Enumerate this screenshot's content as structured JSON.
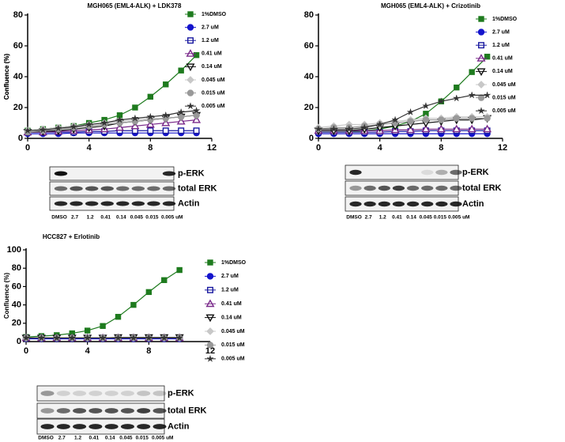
{
  "chart_data": [
    {
      "type": "line",
      "title": "MGH065 (EML4-ALK) + LDK378",
      "y_label": "Confluence (%)",
      "x": [
        0,
        1,
        2,
        3,
        4,
        5,
        6,
        7,
        8,
        9,
        10,
        11
      ],
      "xlim": [
        0,
        12
      ],
      "xticks": [
        0,
        4,
        8,
        12
      ],
      "ylim": [
        0,
        80
      ],
      "yticks": [
        0,
        20,
        40,
        60,
        80
      ],
      "series": [
        {
          "name": "1%DMSO",
          "color": "#1e7b1e",
          "marker": "square",
          "values": [
            5,
            6,
            7,
            8,
            10,
            12,
            15,
            20,
            27,
            35,
            44,
            54
          ]
        },
        {
          "name": "2.7 uM",
          "color": "#1414cc",
          "marker": "circle",
          "values": [
            3,
            3,
            3,
            3.5,
            3.5,
            3.5,
            3.5,
            3.5,
            3.5,
            3.5,
            3.5,
            3.5
          ]
        },
        {
          "name": "1.2 uM",
          "color": "#1a1aa0",
          "marker": "open-square",
          "values": [
            4,
            4,
            4,
            4,
            4.5,
            4.5,
            5,
            5,
            5,
            5,
            5,
            5
          ]
        },
        {
          "name": "0.41 uM",
          "color": "#7a2a8a",
          "marker": "open-triangle",
          "values": [
            4,
            4,
            4.5,
            5,
            5.5,
            6,
            7,
            8,
            9,
            10,
            11,
            12
          ]
        },
        {
          "name": "0.14 uM",
          "color": "#111111",
          "marker": "open-down-triangle",
          "values": [
            4,
            4.5,
            5,
            6,
            7,
            8,
            10,
            11,
            12,
            13,
            14,
            15
          ]
        },
        {
          "name": "0.045 uM",
          "color": "#c8c8c8",
          "marker": "diamond",
          "values": [
            5,
            6,
            7,
            8,
            9,
            10,
            11,
            12,
            13,
            13,
            14,
            15
          ]
        },
        {
          "name": "0.015 uM",
          "color": "#999999",
          "marker": "circle",
          "values": [
            4,
            5,
            6,
            7,
            8,
            9,
            10,
            11,
            12,
            13,
            14,
            15
          ]
        },
        {
          "name": "0.005 uM",
          "color": "#333333",
          "marker": "star",
          "values": [
            5,
            5.5,
            6.5,
            7.5,
            9,
            10,
            12,
            13,
            14,
            15,
            17,
            18
          ]
        }
      ],
      "blot": {
        "rows": [
          "p-ERK",
          "total ERK",
          "Actin"
        ],
        "lanes": [
          "DMSO",
          "2.7",
          "1.2",
          "0.41",
          "0.14",
          "0.045",
          "0.015",
          "0.005 uM"
        ]
      }
    },
    {
      "type": "line",
      "title": "MGH065 (EML4-ALK) + Crizotinib",
      "y_label": "Confluence (%)",
      "x": [
        0,
        1,
        2,
        3,
        4,
        5,
        6,
        7,
        8,
        9,
        10,
        11
      ],
      "xlim": [
        0,
        12
      ],
      "xticks": [
        0,
        4,
        8,
        12
      ],
      "ylim": [
        0,
        80
      ],
      "yticks": [
        0,
        20,
        40,
        60,
        80
      ],
      "series": [
        {
          "name": "1%DMSO",
          "color": "#1e7b1e",
          "marker": "square",
          "values": [
            4,
            4,
            4,
            5,
            6,
            8,
            11,
            16,
            24,
            33,
            43,
            53
          ]
        },
        {
          "name": "2.7 uM",
          "color": "#1414cc",
          "marker": "circle",
          "values": [
            3,
            3,
            3,
            3,
            3,
            3,
            3,
            3,
            3,
            3,
            3,
            3
          ]
        },
        {
          "name": "1.2 uM",
          "color": "#1a1aa0",
          "marker": "open-square",
          "values": [
            4,
            4,
            4,
            4,
            4,
            4.5,
            4.5,
            5,
            5,
            5,
            5,
            5
          ]
        },
        {
          "name": "0.41 uM",
          "color": "#7a2a8a",
          "marker": "open-triangle",
          "values": [
            5,
            5,
            5,
            5,
            5,
            5.5,
            5.5,
            6,
            6,
            6,
            6,
            6
          ]
        },
        {
          "name": "0.14 uM",
          "color": "#111111",
          "marker": "open-down-triangle",
          "values": [
            5,
            5,
            5,
            6,
            7,
            8,
            9,
            10,
            11,
            12,
            12,
            13
          ]
        },
        {
          "name": "0.045 uM",
          "color": "#c8c8c8",
          "marker": "diamond",
          "values": [
            7,
            8,
            9,
            9,
            10,
            11,
            12,
            13,
            13,
            14,
            14,
            14
          ]
        },
        {
          "name": "0.015 uM",
          "color": "#999999",
          "marker": "circle",
          "values": [
            6,
            7,
            7,
            8,
            9,
            10,
            11,
            12,
            12,
            13,
            13,
            13
          ]
        },
        {
          "name": "0.005 uM",
          "color": "#333333",
          "marker": "star",
          "values": [
            6,
            6,
            6,
            7,
            9,
            12,
            17,
            21,
            24,
            26,
            28,
            28
          ]
        }
      ],
      "blot": {
        "rows": [
          "p-ERK",
          "total ERK",
          "Actin"
        ],
        "lanes": [
          "DMSO",
          "2.7",
          "1.2",
          "0.41",
          "0.14",
          "0.045",
          "0.015",
          "0.005 uM"
        ]
      }
    },
    {
      "type": "line",
      "title": "HCC827 + Erlotinib",
      "y_label": "Confluence (%)",
      "x": [
        0,
        1,
        2,
        3,
        4,
        5,
        6,
        7,
        8,
        9,
        10
      ],
      "xlim": [
        0,
        12
      ],
      "xticks": [
        0,
        4,
        8,
        12
      ],
      "ylim": [
        0,
        100
      ],
      "yticks": [
        0,
        20,
        40,
        60,
        80,
        100
      ],
      "series": [
        {
          "name": "1%DMSO",
          "color": "#1e7b1e",
          "marker": "square",
          "values": [
            5,
            6,
            7,
            9,
            12,
            17,
            27,
            40,
            54,
            67,
            78
          ]
        },
        {
          "name": "2.7 uM",
          "color": "#1414cc",
          "marker": "circle",
          "values": [
            3,
            3,
            3,
            3,
            3,
            3,
            3,
            3,
            3,
            3,
            3
          ]
        },
        {
          "name": "1.2 uM",
          "color": "#1a1aa0",
          "marker": "open-square",
          "values": [
            4,
            4,
            4,
            4,
            4,
            4,
            4,
            4,
            4,
            4,
            4
          ]
        },
        {
          "name": "0.41 uM",
          "color": "#7a2a8a",
          "marker": "open-triangle",
          "values": [
            4,
            4,
            4,
            4,
            4,
            4,
            4,
            4,
            4,
            4,
            4
          ]
        },
        {
          "name": "0.14 uM",
          "color": "#111111",
          "marker": "open-down-triangle",
          "values": [
            4,
            4,
            4,
            4,
            4,
            4,
            4.5,
            4.5,
            4.5,
            4.5,
            4.5
          ]
        },
        {
          "name": "0.045 uM",
          "color": "#c8c8c8",
          "marker": "diamond",
          "values": [
            4,
            4,
            4,
            4,
            4,
            4,
            4,
            4,
            4,
            4,
            4
          ]
        },
        {
          "name": "0.015 uM",
          "color": "#999999",
          "marker": "circle",
          "values": [
            4,
            4,
            4,
            4,
            4,
            4,
            4,
            4,
            4,
            4,
            4
          ]
        },
        {
          "name": "0.005 uM",
          "color": "#333333",
          "marker": "star",
          "values": [
            4,
            4,
            4,
            4,
            4,
            4,
            4,
            4,
            4,
            4,
            4
          ]
        }
      ],
      "blot": {
        "rows": [
          "p-ERK",
          "total ERK",
          "Actin"
        ],
        "lanes": [
          "DMSO",
          "2.7",
          "1.2",
          "0.41",
          "0.14",
          "0.045",
          "0.015",
          "0.005 uM"
        ]
      }
    }
  ]
}
